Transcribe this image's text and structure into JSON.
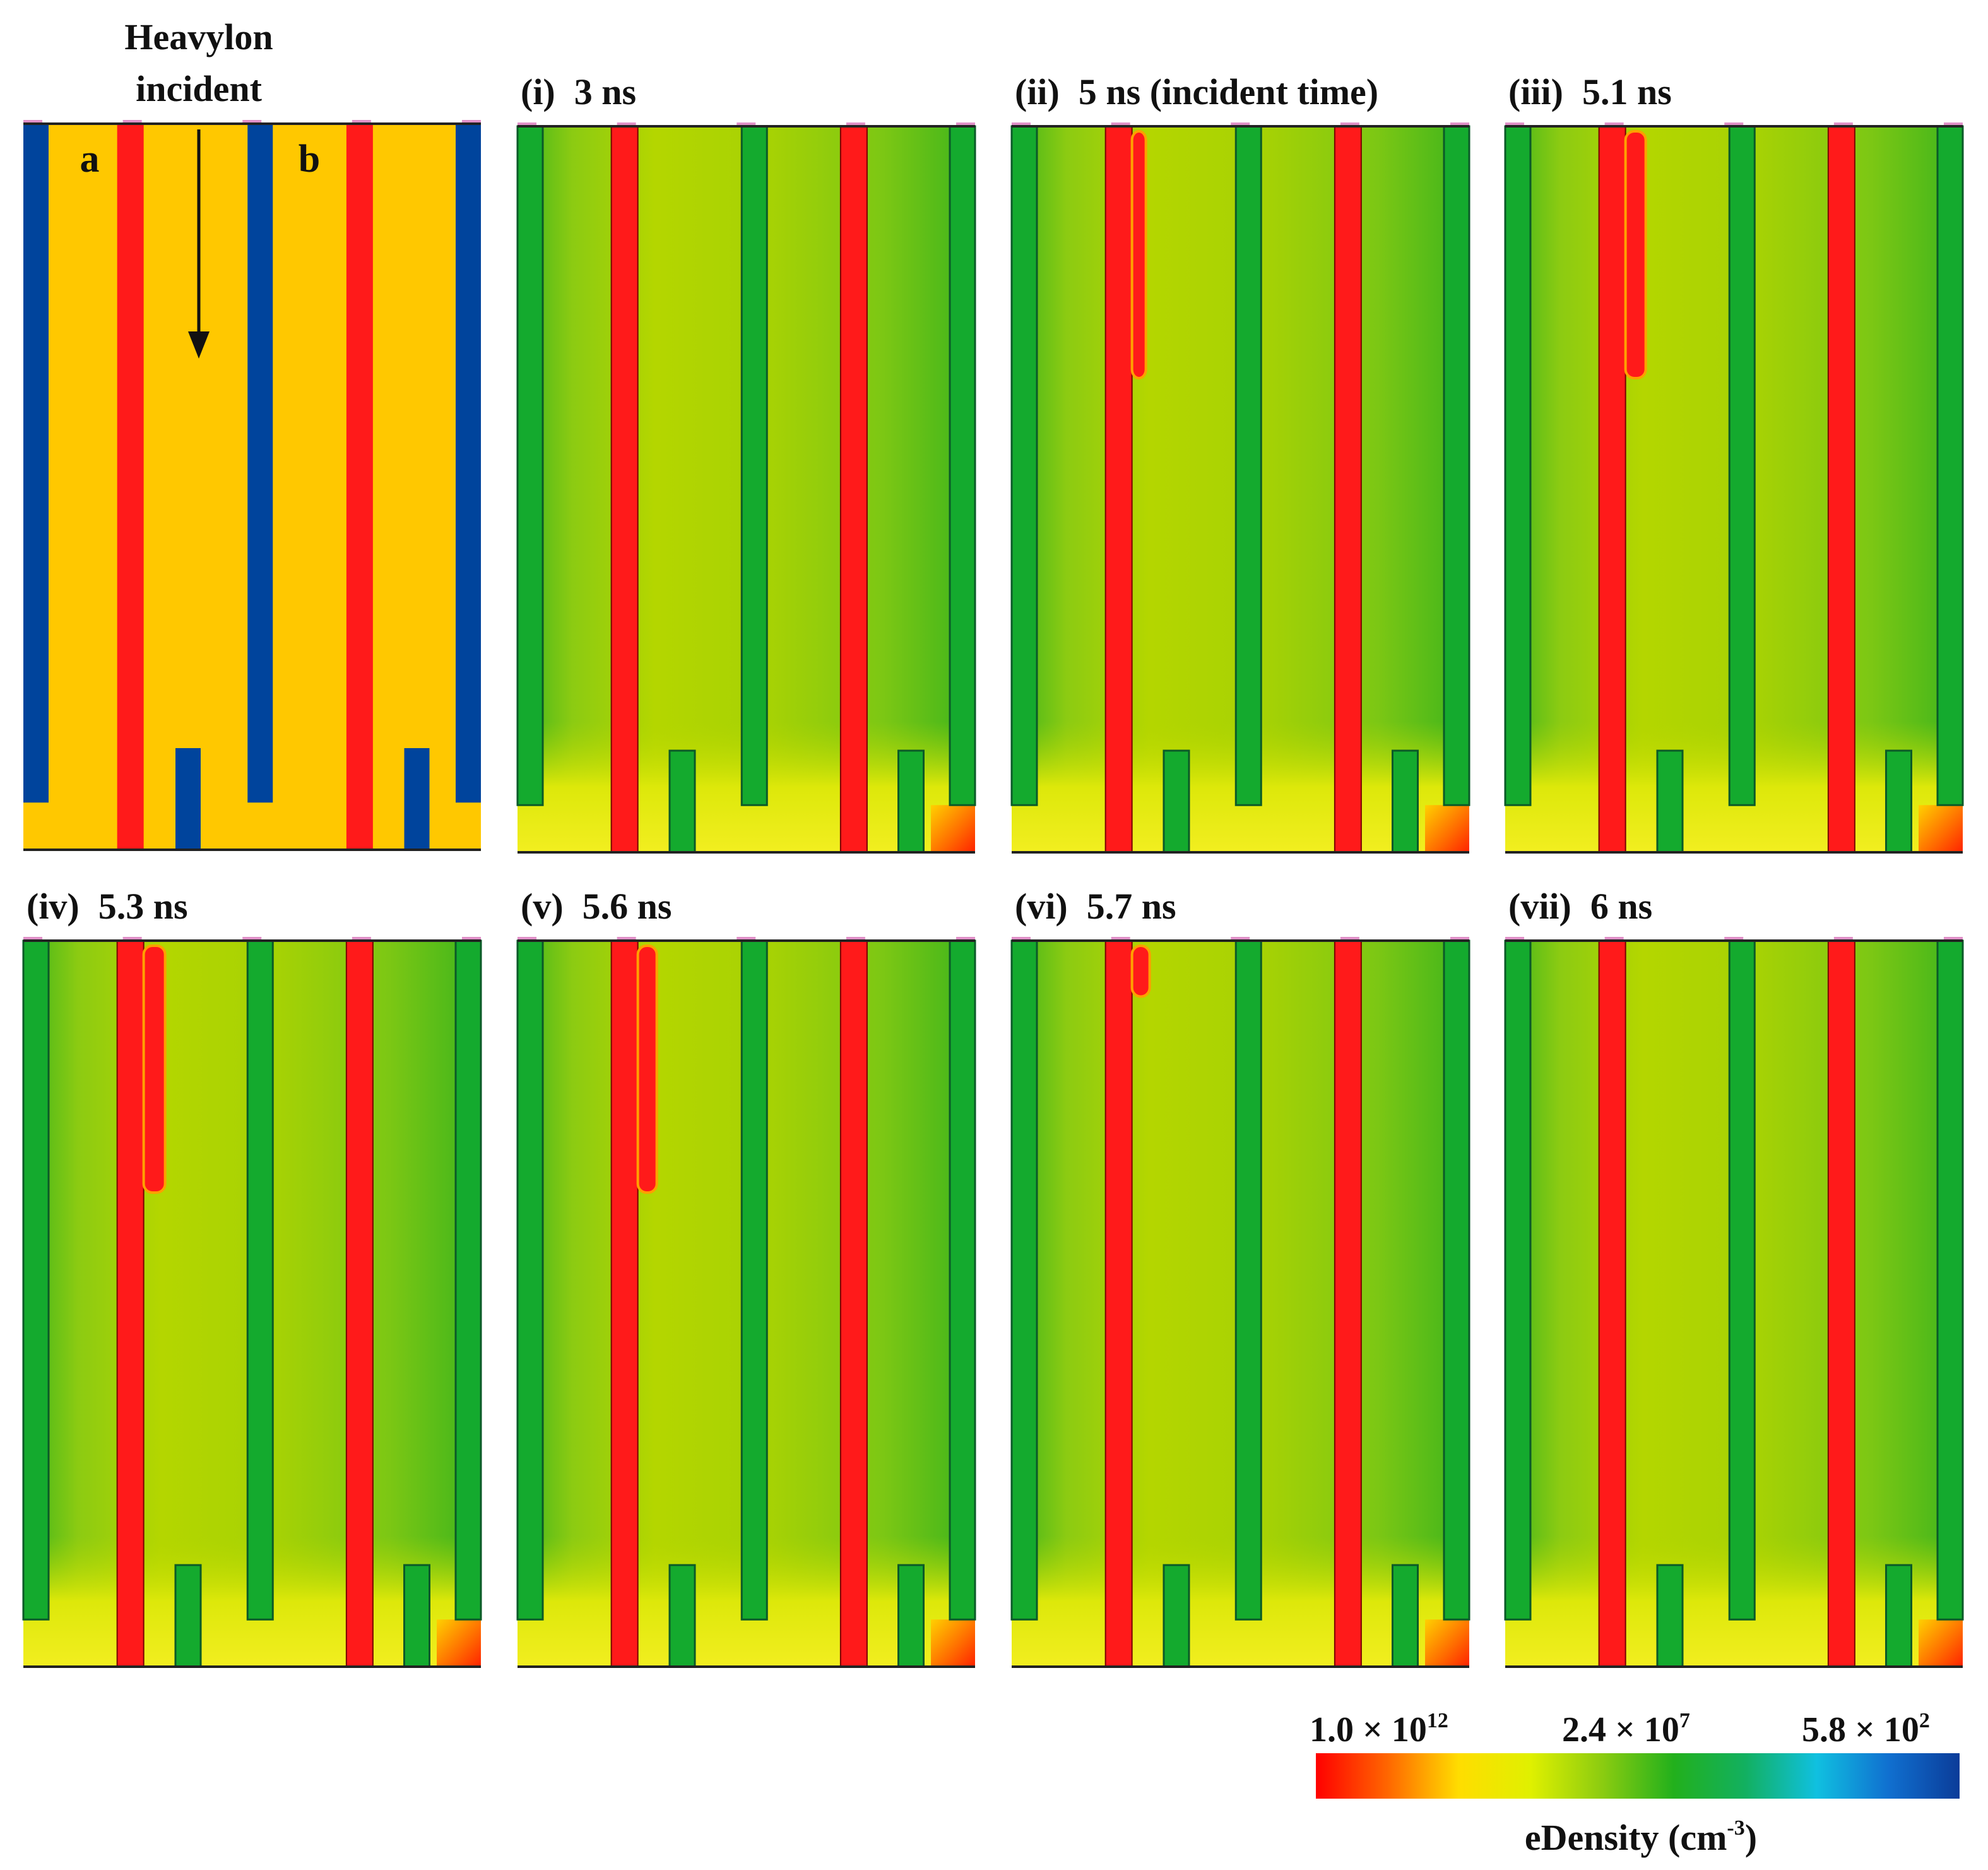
{
  "schematic": {
    "title_line1": "Heavylon",
    "title_line2": "incident",
    "label_a": "a",
    "label_b": "b",
    "colors": {
      "bulk": "#FFC800",
      "pillar": "#FF1A1A",
      "trench": "#00449C"
    }
  },
  "panels": [
    {
      "id": "i",
      "label": "(i)",
      "time": "3 ns",
      "track_depth": 0,
      "track_width": 0
    },
    {
      "id": "ii",
      "label": "(ii)",
      "time": "5 ns (incident time)",
      "track_depth": 0.34,
      "track_width": 0.3
    },
    {
      "id": "iii",
      "label": "(iii)",
      "time": "5.1 ns",
      "track_depth": 0.34,
      "track_width": 0.55
    },
    {
      "id": "iv",
      "label": "(iv)",
      "time": "5.3 ns",
      "track_depth": 0.34,
      "track_width": 0.6
    },
    {
      "id": "v",
      "label": "(v)",
      "time": "5.6 ns",
      "track_depth": 0.34,
      "track_width": 0.5
    },
    {
      "id": "vi",
      "label": "(vi)",
      "time": "5.7 ns",
      "track_depth": 0.07,
      "track_width": 0.45
    },
    {
      "id": "vii",
      "label": "(vii)",
      "time": "6 ns",
      "track_depth": 0,
      "track_width": 0
    }
  ],
  "colorbar": {
    "label_min": "1.0 × 10",
    "exp_min": "12",
    "label_mid": "2.4 × 10",
    "exp_mid": "7",
    "label_max": "5.8 × 10",
    "exp_max": "2",
    "title": "eDensity (cm",
    "title_exp": "-3",
    "title_close": ")",
    "stops": [
      "#FF0000",
      "#FF6600",
      "#FFDD00",
      "#E0F000",
      "#8CCC10",
      "#22B01C",
      "#12B060",
      "#10C0E0",
      "#1070D0",
      "#0B3C99"
    ]
  }
}
